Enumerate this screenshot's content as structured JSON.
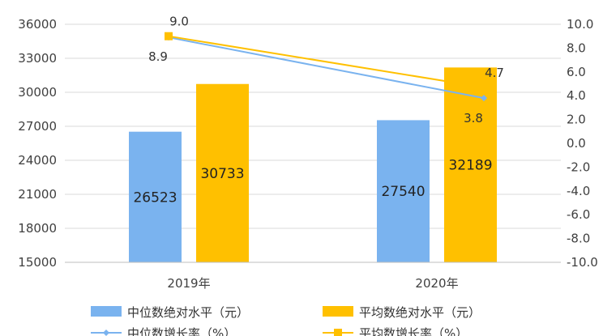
{
  "chart_data": {
    "type": "bar",
    "categories": [
      "2019年",
      "2020年"
    ],
    "series": [
      {
        "name": "中位数绝对水平（元）",
        "kind": "bar",
        "axis": "left",
        "values": [
          26523,
          27540
        ],
        "color": "#7ab3ef"
      },
      {
        "name": "平均数绝对水平（元）",
        "kind": "bar",
        "axis": "left",
        "values": [
          30733,
          32189
        ],
        "color": "#ffc000"
      },
      {
        "name": "中位数增长率（%）",
        "kind": "line",
        "axis": "right",
        "values": [
          8.9,
          3.8
        ],
        "color": "#7ab3ef"
      },
      {
        "name": "平均数增长率（%）",
        "kind": "line",
        "axis": "right",
        "values": [
          9.0,
          4.7
        ],
        "color": "#ffc000"
      }
    ],
    "bar_labels": [
      [
        "26523",
        "27540"
      ],
      [
        "30733",
        "32189"
      ]
    ],
    "line_labels": [
      [
        "8.9",
        "3.8"
      ],
      [
        "9.0",
        "4.7"
      ]
    ],
    "ylim_left": [
      15000,
      36000
    ],
    "yticks_left": [
      "36000",
      "33000",
      "30000",
      "27000",
      "24000",
      "21000",
      "18000",
      "15000"
    ],
    "ylim_right": [
      -10,
      10
    ],
    "yticks_right": [
      "10.0",
      "8.0",
      "6.0",
      "4.0",
      "2.0",
      "0.0",
      "-2.0",
      "-4.0",
      "-6.0",
      "-8.0",
      "-10.0"
    ],
    "grid": true,
    "legend_position": "bottom",
    "title": "",
    "xlabel": "",
    "ylabel": ""
  }
}
